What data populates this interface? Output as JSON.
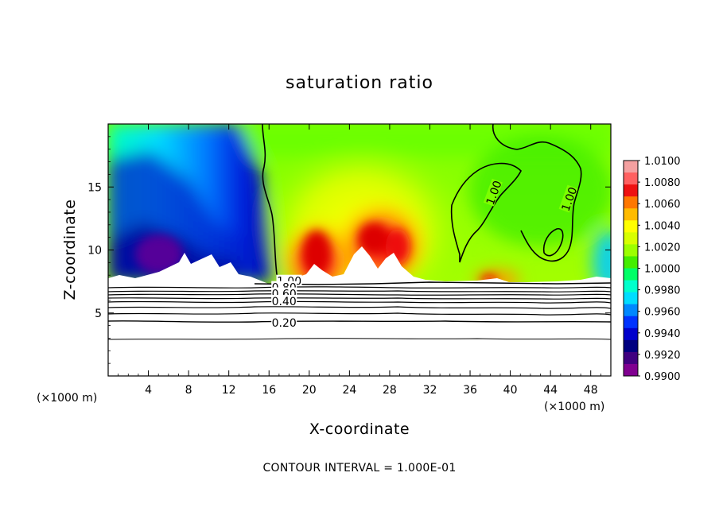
{
  "chart_data": {
    "type": "heatmap",
    "title": "saturation ratio",
    "xlabel": "X-coordinate",
    "ylabel": "Z-coordinate",
    "x_unit_label": "(×1000 m)",
    "x_unit_label_right": "(×1000 m)",
    "xlim": [
      0,
      50
    ],
    "ylim": [
      0,
      20
    ],
    "x_ticks": [
      4,
      8,
      12,
      16,
      20,
      24,
      28,
      32,
      36,
      40,
      44,
      48
    ],
    "y_ticks": [
      5,
      10,
      15
    ],
    "footer": "CONTOUR INTERVAL = 1.000E-01",
    "colorbar": {
      "ticks": [
        "1.0100",
        "1.0080",
        "1.0060",
        "1.0040",
        "1.0020",
        "1.0000",
        "0.9980",
        "0.9960",
        "0.9940",
        "0.9920",
        "0.9900"
      ],
      "colors": [
        "#f4a0a0",
        "#ff6060",
        "#ee1111",
        "#ff7700",
        "#ffbb00",
        "#ffff00",
        "#d8ff00",
        "#9cff00",
        "#44ee00",
        "#00ff66",
        "#00ffcc",
        "#00ddff",
        "#0088ff",
        "#0033ff",
        "#0000cc",
        "#000080",
        "#400080",
        "#800090"
      ],
      "min": 0.99,
      "max": 1.01
    },
    "field_regions": {
      "background_value": 1.0,
      "dry_left": {
        "x_range": [
          0,
          16
        ],
        "z_range": [
          7.5,
          20
        ],
        "min_value": 0.99
      },
      "moist_center": {
        "x_range": [
          17,
          31
        ],
        "z_range": [
          7.3,
          16
        ],
        "max_value": 1.009
      },
      "moist_patch": {
        "x_range": [
          37,
          41
        ],
        "z_range": [
          7.3,
          8
        ],
        "max_value": 1.006
      },
      "dry_right_edge": {
        "x_range": [
          47,
          50
        ],
        "z_range": [
          7.5,
          10
        ],
        "min_value": 0.995
      }
    },
    "contour_labels": [
      {
        "text": "1.00",
        "x": 18.0,
        "z": 7.4
      },
      {
        "text": "1.00",
        "x": 38.5,
        "z": 14.5
      },
      {
        "text": "1.00",
        "x": 46.0,
        "z": 14.0
      },
      {
        "text": "0.80",
        "x": 17.5,
        "z": 6.9
      },
      {
        "text": "0.60",
        "x": 17.5,
        "z": 6.4
      },
      {
        "text": "0.40",
        "x": 17.5,
        "z": 5.8
      },
      {
        "text": "0.20",
        "x": 17.5,
        "z": 4.1
      }
    ],
    "contours_below": [
      {
        "level": 0.2,
        "z": 4.2
      },
      {
        "level": 0.4,
        "z": 5.6
      }
    ]
  }
}
